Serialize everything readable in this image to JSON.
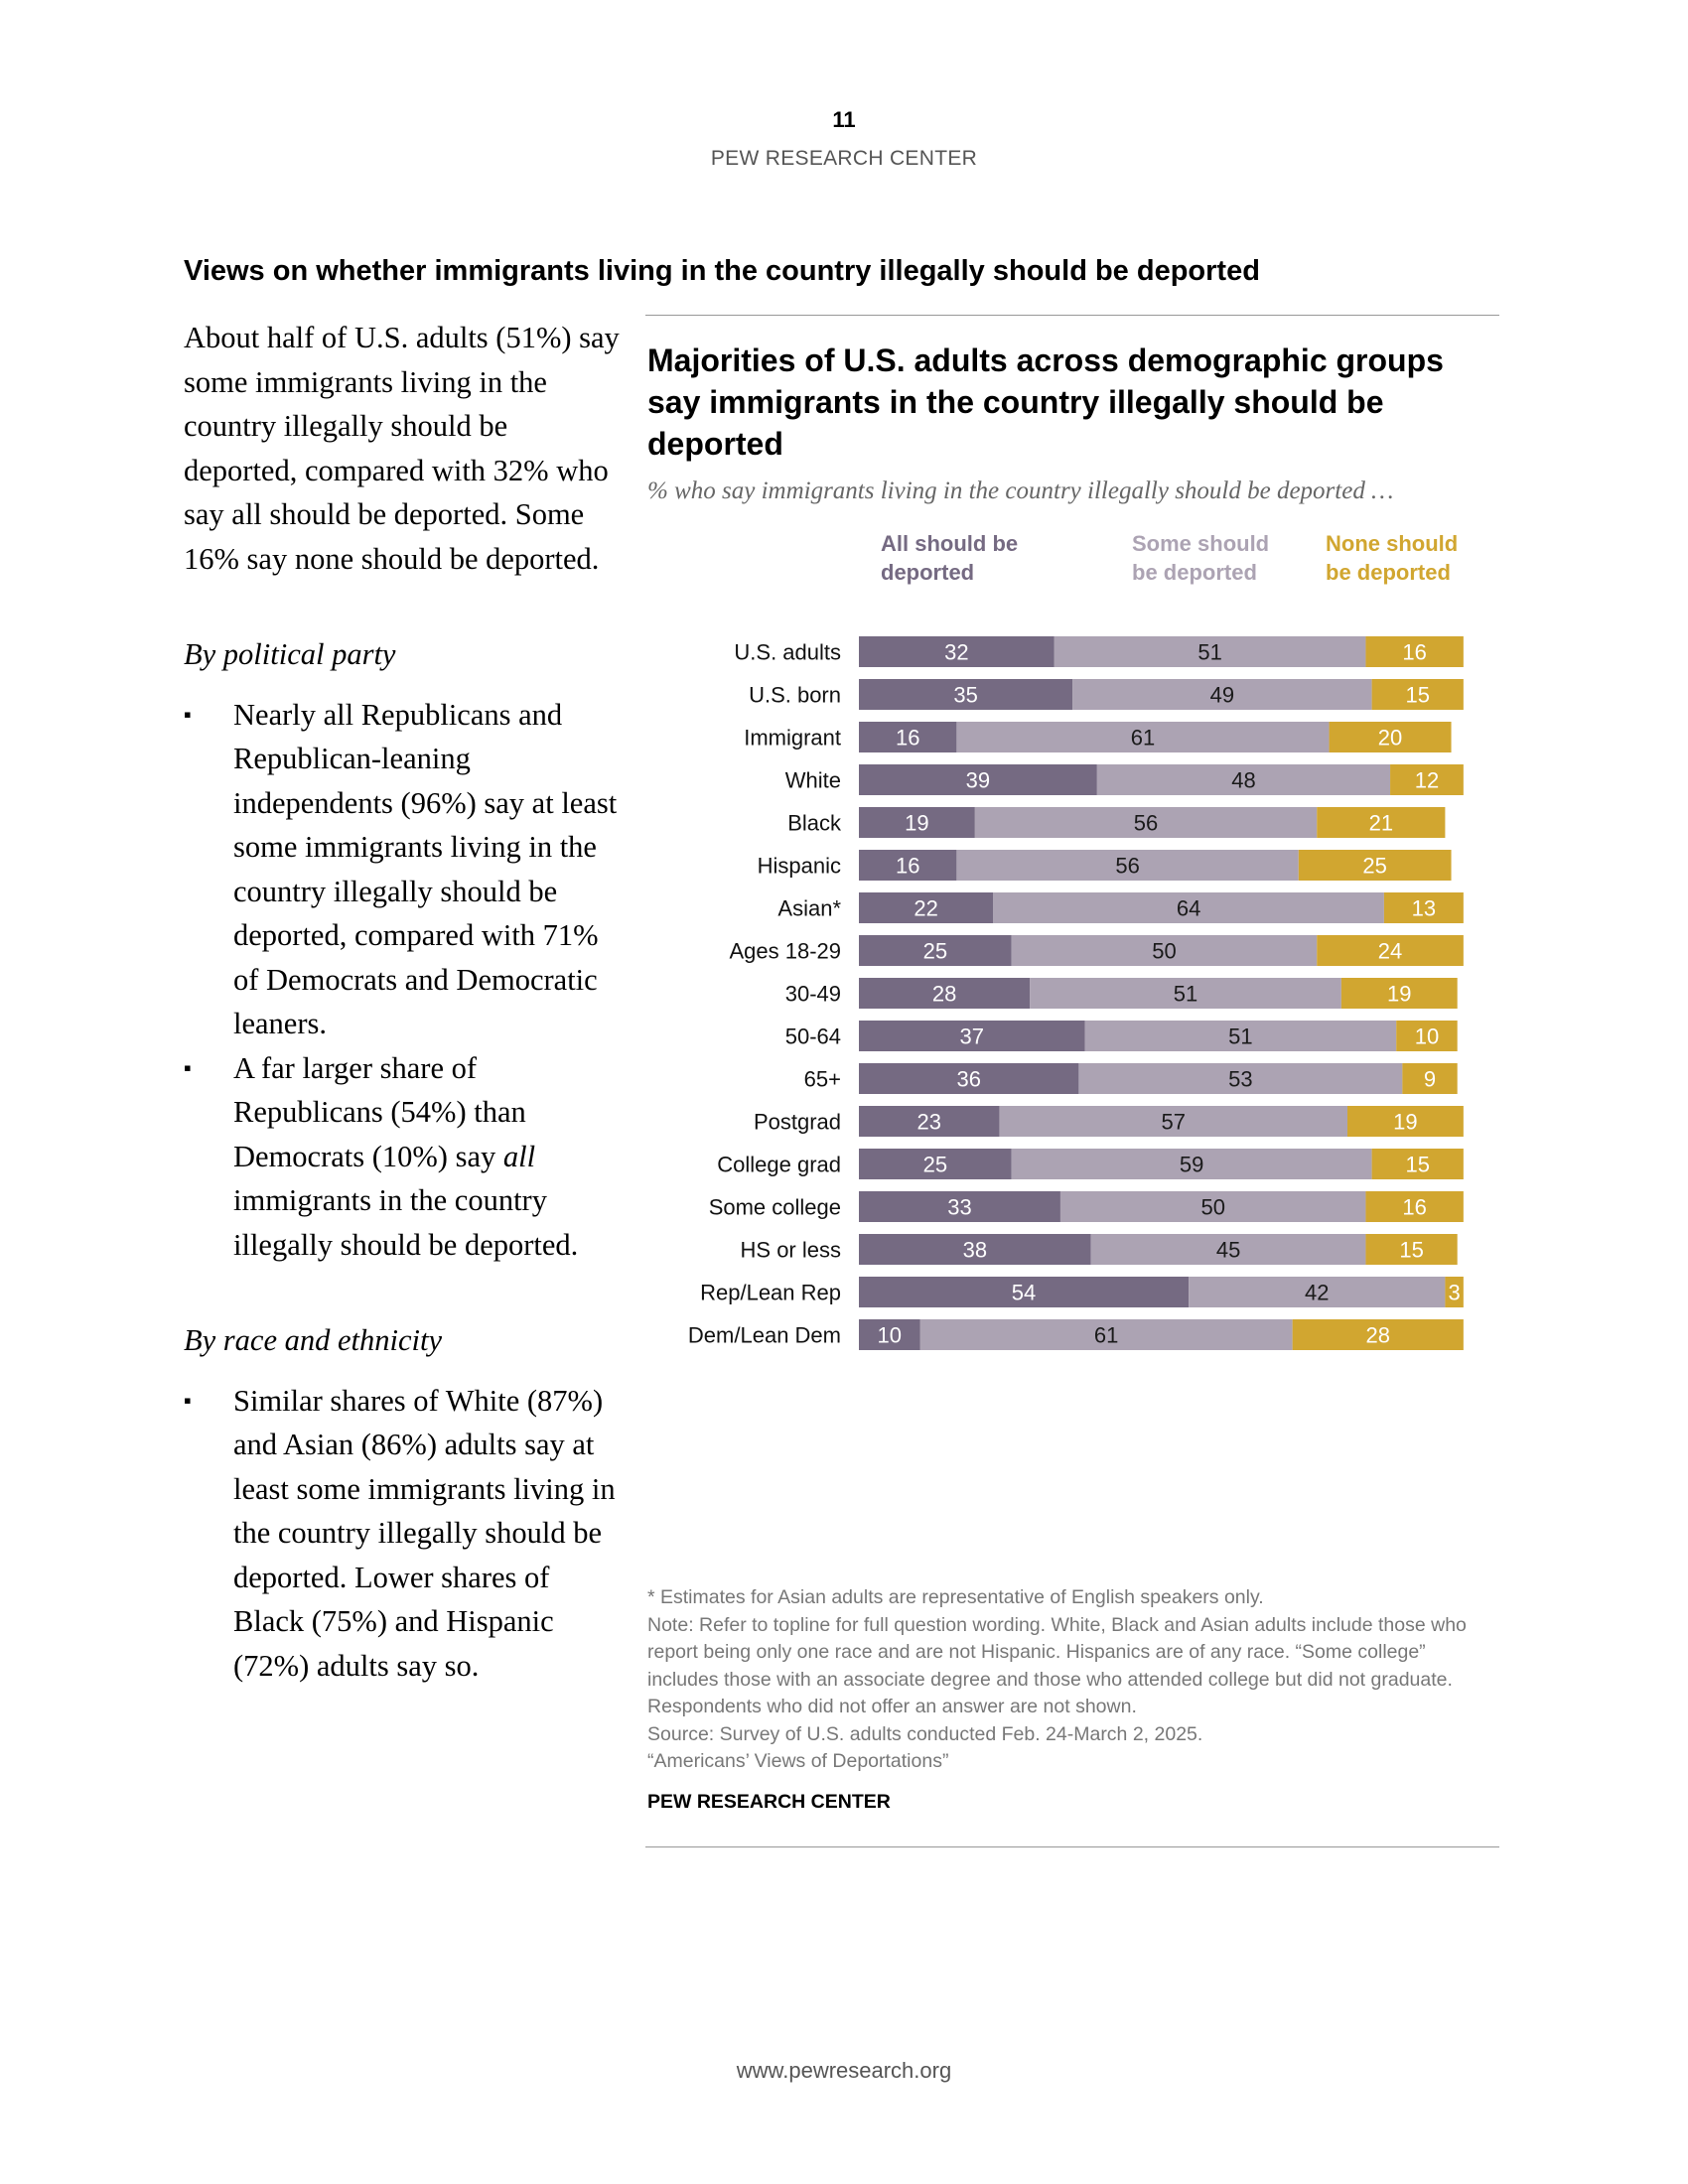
{
  "header": {
    "page_number": "11",
    "org": "PEW RESEARCH CENTER"
  },
  "section_title": "Views on whether immigrants living in the country illegally should be deported",
  "body": {
    "intro": "About half of U.S. adults (51%) say some immigrants living in the country illegally should be deported, compared with 32% who say all should be deported. Some 16% say none should be deported.",
    "party_heading": "By political party",
    "party_bullets": [
      "Nearly all Republicans and Republican-leaning independents (96%) say at least some immigrants living in the country illegally should be deported, compared with 71% of Democrats and Democratic leaners.",
      {
        "before": "A far larger share of Republicans (54%) than Democrats (10%) say ",
        "emphasis": "all",
        "after": " immigrants in the country illegally should be deported."
      }
    ],
    "race_heading": "By race and ethnicity",
    "race_bullets": [
      "Similar shares of White (87%) and Asian (86%) adults say at least some immigrants living in the country illegally should be deported. Lower shares of Black (75%) and Hispanic (72%) adults say so."
    ],
    "bullet_symbol": "▪"
  },
  "chart_data": {
    "type": "bar",
    "orientation": "horizontal",
    "stacked": true,
    "title": "Majorities of U.S. adults across demographic groups say immigrants in the country illegally should be deported",
    "subtitle": "% who say immigrants living in the country illegally should be deported …",
    "xlim": [
      0,
      100
    ],
    "legend_position": "top",
    "categories": [
      "U.S. adults",
      "U.S. born",
      "Immigrant",
      "White",
      "Black",
      "Hispanic",
      "Asian*",
      "Ages 18-29",
      "30-49",
      "50-64",
      "65+",
      "Postgrad",
      "College grad",
      "Some college",
      "HS or less",
      "Rep/Lean Rep",
      "Dem/Lean Dem"
    ],
    "groups": [
      [
        0
      ],
      [
        1,
        2
      ],
      [
        3,
        4,
        5,
        6
      ],
      [
        7,
        8,
        9,
        10
      ],
      [
        11,
        12,
        13,
        14
      ],
      [
        15,
        16
      ]
    ],
    "series": [
      {
        "name": "All should be deported",
        "color": "#756a82",
        "label_color": "#ffffff",
        "legend_color": "#756a82",
        "values": [
          32,
          35,
          16,
          39,
          19,
          16,
          22,
          25,
          28,
          37,
          36,
          23,
          25,
          33,
          38,
          54,
          10
        ]
      },
      {
        "name": "Some should be deported",
        "color": "#aca3b3",
        "label_color": "#1a1a1a",
        "legend_color": "#aca3b3",
        "values": [
          51,
          49,
          61,
          48,
          56,
          56,
          64,
          50,
          51,
          51,
          53,
          57,
          59,
          50,
          45,
          42,
          61
        ]
      },
      {
        "name": "None should be deported",
        "color": "#d1a630",
        "label_color": "#ffffff",
        "legend_color": "#d1a630",
        "values": [
          16,
          15,
          20,
          12,
          21,
          25,
          13,
          24,
          19,
          10,
          9,
          19,
          15,
          16,
          15,
          3,
          28
        ]
      }
    ],
    "notes": [
      "* Estimates for Asian adults are representative of English speakers only.",
      "Note: Refer to topline for full question wording. White, Black and Asian adults include those who report being only one race and are not Hispanic. Hispanics are of any race. “Some college” includes those with an associate degree and those who attended college but did not graduate. Respondents who did not offer an answer are not shown.",
      "Source: Survey of U.S. adults conducted Feb. 24-March 2, 2025.",
      "“Americans’ Views of Deportations”"
    ],
    "source_label": "PEW RESEARCH CENTER"
  },
  "footer": {
    "url": "www.pewresearch.org"
  }
}
